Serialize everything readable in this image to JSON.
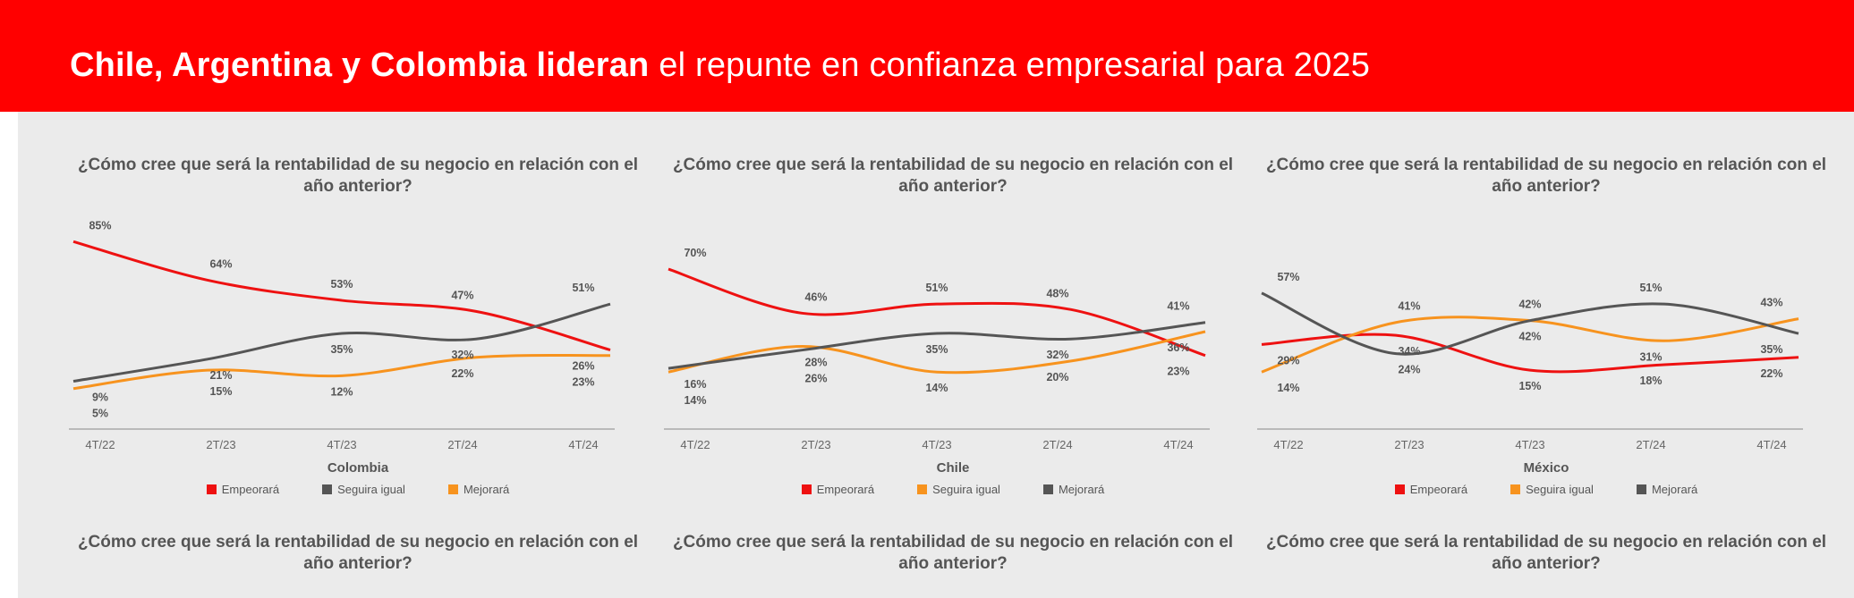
{
  "header": {
    "title_bold": "Chile, Argentina y Colombia lideran",
    "title_rest": " el repunte en confianza empresarial para 2025",
    "background": "#ff0000"
  },
  "colors": {
    "red": "#ee1111",
    "gray": "#555555",
    "orange": "#f7931e"
  },
  "chart_data": [
    {
      "type": "line",
      "title": "¿Cómo cree que será la rentabilidad de su negocio en relación con el año anterior?",
      "xlabel": "Colombia",
      "categories": [
        "4T/22",
        "2T/23",
        "4T/23",
        "2T/24",
        "4T/24"
      ],
      "legend": "bottom",
      "grid": false,
      "series": [
        {
          "name": "Empeorará",
          "color": "#ee1111",
          "values": [
            85,
            64,
            53,
            47,
            26
          ]
        },
        {
          "name": "Seguira igual",
          "color": "#555555",
          "values": [
            9,
            21,
            35,
            32,
            51
          ]
        },
        {
          "name": "Mejorará",
          "color": "#f7931e",
          "values": [
            5,
            15,
            12,
            22,
            23
          ]
        }
      ]
    },
    {
      "type": "line",
      "title": "¿Cómo cree que será la rentabilidad de su negocio en relación con el año anterior?",
      "xlabel": "Chile",
      "categories": [
        "4T/22",
        "2T/23",
        "4T/23",
        "2T/24",
        "4T/24"
      ],
      "legend": "bottom",
      "grid": false,
      "series": [
        {
          "name": "Empeorará",
          "color": "#ee1111",
          "values": [
            70,
            46,
            51,
            48,
            23
          ]
        },
        {
          "name": "Seguira igual",
          "color": "#f7931e",
          "values": [
            14,
            28,
            14,
            20,
            36
          ]
        },
        {
          "name": "Mejorará",
          "color": "#555555",
          "values": [
            16,
            26,
            35,
            32,
            41
          ]
        }
      ]
    },
    {
      "type": "line",
      "title": "¿Cómo cree que será la rentabilidad de su negocio en relación con el año anterior?",
      "xlabel": "México",
      "categories": [
        "4T/22",
        "2T/23",
        "4T/23",
        "2T/24",
        "4T/24"
      ],
      "legend": "bottom",
      "grid": false,
      "series": [
        {
          "name": "Empeorará",
          "color": "#ee1111",
          "values": [
            29,
            34,
            15,
            18,
            22
          ]
        },
        {
          "name": "Seguira igual",
          "color": "#f7931e",
          "values": [
            14,
            41,
            42,
            31,
            43
          ]
        },
        {
          "name": "Mejorará",
          "color": "#555555",
          "values": [
            57,
            24,
            42,
            51,
            35
          ]
        }
      ]
    }
  ],
  "bottom_titles": [
    "¿Cómo cree que será la rentabilidad de su negocio en relación con el año anterior?",
    "¿Cómo cree que será la rentabilidad de su negocio en relación con el año anterior?",
    "¿Cómo cree que será la rentabilidad de su negocio en relación con el año anterior?"
  ]
}
